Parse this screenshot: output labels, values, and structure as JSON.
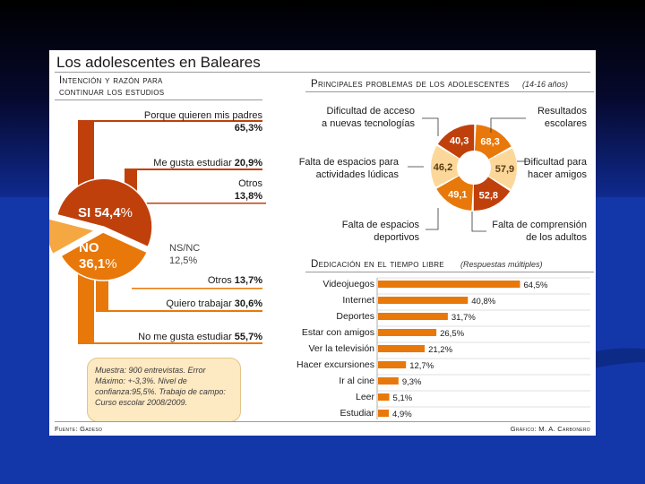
{
  "card_title": "Los adolescentes en Baleares",
  "colors": {
    "dark": "#c0400c",
    "mid": "#e8780a",
    "light": "#f5a742",
    "pale": "#fbd89a",
    "line": "#c0400c"
  },
  "chart_data": [
    {
      "type": "pie",
      "title": "Intención y razón para continuar los estudios",
      "slices": [
        {
          "label": "SI",
          "value": 54.4,
          "display": "SI 54,4%"
        },
        {
          "label": "NO",
          "value": 36.1,
          "display": "NO 36,1%"
        },
        {
          "label": "NS/NC",
          "value": 12.5,
          "display": "NS/NC 12,5%"
        }
      ],
      "si_reasons": [
        {
          "label": "Porque quieren mis padres",
          "value": "65,3%"
        },
        {
          "label": "Me gusta estudiar",
          "value": "20,9%"
        },
        {
          "label": "Otros",
          "value": "13,8%"
        }
      ],
      "no_reasons": [
        {
          "label": "Otros",
          "value": "13,7%"
        },
        {
          "label": "Quiero trabajar",
          "value": "30,6%"
        },
        {
          "label": "No me gusta estudiar",
          "value": "55,7%"
        }
      ],
      "si_parts": {
        "label": "SI",
        "value": "54,4",
        "unit": "%"
      },
      "no_parts": {
        "label": "NO",
        "value": "36,1",
        "unit": "%"
      },
      "nsnc_parts": {
        "label": "NS/NC",
        "value": "12,5",
        "unit": "%"
      }
    },
    {
      "type": "pie",
      "title": "Principales problemas de los adolescentes",
      "subtitle": "(14-16 años)",
      "slices": [
        {
          "label": "Resultados escolares",
          "value": 68.3,
          "display": "68,3"
        },
        {
          "label": "Dificultad para hacer amigos",
          "value": 57.9,
          "display": "57,9"
        },
        {
          "label": "Falta de comprensión de los adultos",
          "value": 52.8,
          "display": "52,8"
        },
        {
          "label": "Falta de espacios deportivos",
          "value": 49.1,
          "display": "49,1"
        },
        {
          "label": "Falta de espacios para actividades lúdicas",
          "value": 46.2,
          "display": "46,2"
        },
        {
          "label": "Dificultad de acceso a nuevas tecnologías",
          "value": 40.3,
          "display": "40,3"
        }
      ],
      "labels": {
        "acceso": [
          "Dificultad de acceso",
          "a nuevas tecnologías"
        ],
        "resultados": [
          "Resultados",
          "escolares"
        ],
        "ludicas": [
          "Falta de espacios para",
          "actividades lúdicas"
        ],
        "amigos": [
          "Dificultad para",
          "hacer amigos"
        ],
        "deportivos": [
          "Falta de espacios",
          "deportivos"
        ],
        "comprension": [
          "Falta de comprensión",
          "de los adultos"
        ]
      }
    },
    {
      "type": "bar",
      "title": "Dedicación en el tiempo libre",
      "subtitle": "(Respuestas múltiples)",
      "categories": [
        "Videojuegos",
        "Internet",
        "Deportes",
        "Estar con amigos",
        "Ver la televisión",
        "Hacer excursiones",
        "Ir al cine",
        "Leer",
        "Estudiar"
      ],
      "values": [
        64.5,
        40.8,
        31.7,
        26.5,
        21.2,
        12.7,
        9.3,
        5.1,
        4.9
      ],
      "value_labels": [
        "64,5%",
        "40,8%",
        "31,7%",
        "26,5%",
        "21,2%",
        "12,7%",
        "9,3%",
        "5,1%",
        "4,9%"
      ],
      "xlim": [
        0,
        70
      ]
    }
  ],
  "note": "Muestra: 900 entrevistas. Error Máximo: +-3,3%. Nivel de confianza:95,5%. Trabajo de campo: Curso escolar 2008/2009.",
  "source": "Fuente: Gadeso",
  "credit": "Gráfico: M. A. Carbonero"
}
